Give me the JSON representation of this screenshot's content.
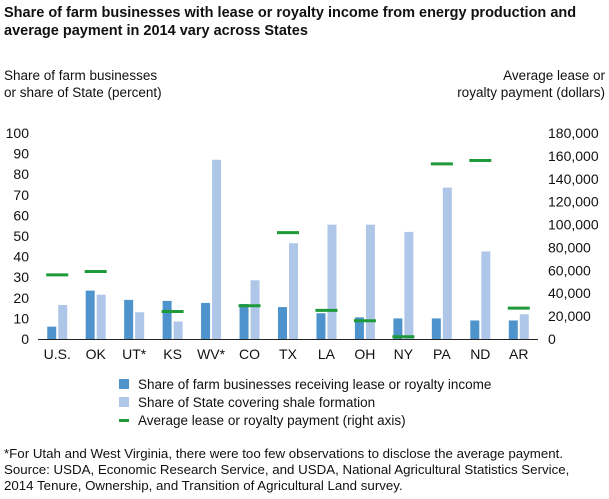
{
  "title_lines": [
    "Share of farm businesses with lease or royalty income from energy production and",
    "average payment in 2014 vary across States"
  ],
  "left_axis_title": [
    "Share of farm businesses",
    "or share of State (percent)"
  ],
  "right_axis_title": [
    "Average lease or",
    "royalty payment (dollars)"
  ],
  "legend": [
    {
      "label": "Share of farm businesses receiving lease or royalty income",
      "color": "#4f93cc",
      "kind": "bar"
    },
    {
      "label": "Share of State covering shale formation",
      "color": "#aec7e8",
      "kind": "bar"
    },
    {
      "label": "Average lease or royalty payment (right axis)",
      "color": "#1f9a3a",
      "kind": "line"
    }
  ],
  "footnote_lines": [
    "*For Utah and West Virginia, there were too few observations to disclose the average payment.",
    "Source: USDA, Economic Research Service, and USDA, National Agricultural Statistics Service,",
    "2014 Tenure, Ownership, and Transition of Agricultural Land survey."
  ],
  "chart_data": {
    "type": "bar",
    "categories": [
      "U.S.",
      "OK",
      "UT*",
      "KS",
      "WV*",
      "CO",
      "TX",
      "LA",
      "OH",
      "NY",
      "PA",
      "ND",
      "AR"
    ],
    "series": [
      {
        "name": "Share of farm businesses receiving lease or royalty income",
        "axis": "left",
        "values": [
          6.0,
          23.5,
          19.0,
          18.5,
          17.5,
          17.0,
          15.5,
          12.5,
          10.5,
          10.0,
          10.0,
          9.0,
          9.0
        ]
      },
      {
        "name": "Share of State covering shale formation",
        "axis": "left",
        "values": [
          16.5,
          21.5,
          13.0,
          8.5,
          87.0,
          28.5,
          46.5,
          55.5,
          55.5,
          52.0,
          73.5,
          42.5,
          12.0
        ]
      },
      {
        "name": "Average lease or royalty payment (right axis)",
        "axis": "right",
        "values": [
          56000,
          59000,
          null,
          24000,
          null,
          29000,
          93000,
          25000,
          16000,
          2000,
          153000,
          156000,
          27000
        ]
      }
    ],
    "ylim_left": [
      0,
      100
    ],
    "yticks_left": [
      "0",
      "10",
      "20",
      "30",
      "40",
      "50",
      "60",
      "70",
      "80",
      "90",
      "100"
    ],
    "ylim_right": [
      0,
      180000
    ],
    "yticks_right": [
      "0",
      "20,000",
      "40,000",
      "60,000",
      "80,000",
      "100,000",
      "120,000",
      "140,000",
      "160,000",
      "180,000"
    ],
    "grid": false,
    "legend_position": "bottom"
  }
}
